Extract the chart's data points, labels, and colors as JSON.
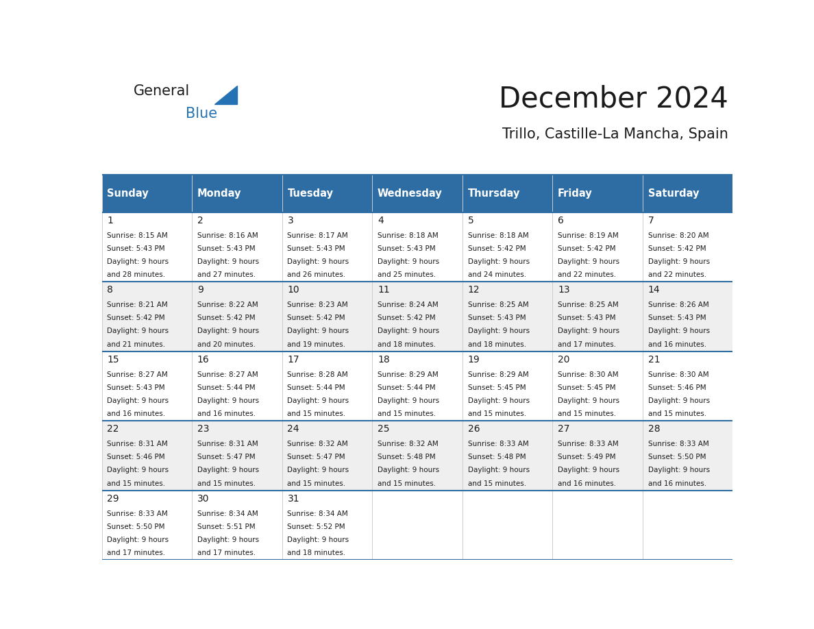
{
  "title": "December 2024",
  "subtitle": "Trillo, Castille-La Mancha, Spain",
  "header_bg_color": "#2E6DA4",
  "header_text_color": "#FFFFFF",
  "cell_bg_even": "#EFEFEF",
  "cell_bg_odd": "#FFFFFF",
  "day_names": [
    "Sunday",
    "Monday",
    "Tuesday",
    "Wednesday",
    "Thursday",
    "Friday",
    "Saturday"
  ],
  "title_color": "#1a1a1a",
  "subtitle_color": "#1a1a1a",
  "days": [
    {
      "day": 1,
      "col": 0,
      "row": 0,
      "sunrise": "8:15 AM",
      "sunset": "5:43 PM",
      "daylight": "9 hours and 28 minutes."
    },
    {
      "day": 2,
      "col": 1,
      "row": 0,
      "sunrise": "8:16 AM",
      "sunset": "5:43 PM",
      "daylight": "9 hours and 27 minutes."
    },
    {
      "day": 3,
      "col": 2,
      "row": 0,
      "sunrise": "8:17 AM",
      "sunset": "5:43 PM",
      "daylight": "9 hours and 26 minutes."
    },
    {
      "day": 4,
      "col": 3,
      "row": 0,
      "sunrise": "8:18 AM",
      "sunset": "5:43 PM",
      "daylight": "9 hours and 25 minutes."
    },
    {
      "day": 5,
      "col": 4,
      "row": 0,
      "sunrise": "8:18 AM",
      "sunset": "5:42 PM",
      "daylight": "9 hours and 24 minutes."
    },
    {
      "day": 6,
      "col": 5,
      "row": 0,
      "sunrise": "8:19 AM",
      "sunset": "5:42 PM",
      "daylight": "9 hours and 22 minutes."
    },
    {
      "day": 7,
      "col": 6,
      "row": 0,
      "sunrise": "8:20 AM",
      "sunset": "5:42 PM",
      "daylight": "9 hours and 22 minutes."
    },
    {
      "day": 8,
      "col": 0,
      "row": 1,
      "sunrise": "8:21 AM",
      "sunset": "5:42 PM",
      "daylight": "9 hours and 21 minutes."
    },
    {
      "day": 9,
      "col": 1,
      "row": 1,
      "sunrise": "8:22 AM",
      "sunset": "5:42 PM",
      "daylight": "9 hours and 20 minutes."
    },
    {
      "day": 10,
      "col": 2,
      "row": 1,
      "sunrise": "8:23 AM",
      "sunset": "5:42 PM",
      "daylight": "9 hours and 19 minutes."
    },
    {
      "day": 11,
      "col": 3,
      "row": 1,
      "sunrise": "8:24 AM",
      "sunset": "5:42 PM",
      "daylight": "9 hours and 18 minutes."
    },
    {
      "day": 12,
      "col": 4,
      "row": 1,
      "sunrise": "8:25 AM",
      "sunset": "5:43 PM",
      "daylight": "9 hours and 18 minutes."
    },
    {
      "day": 13,
      "col": 5,
      "row": 1,
      "sunrise": "8:25 AM",
      "sunset": "5:43 PM",
      "daylight": "9 hours and 17 minutes."
    },
    {
      "day": 14,
      "col": 6,
      "row": 1,
      "sunrise": "8:26 AM",
      "sunset": "5:43 PM",
      "daylight": "9 hours and 16 minutes."
    },
    {
      "day": 15,
      "col": 0,
      "row": 2,
      "sunrise": "8:27 AM",
      "sunset": "5:43 PM",
      "daylight": "9 hours and 16 minutes."
    },
    {
      "day": 16,
      "col": 1,
      "row": 2,
      "sunrise": "8:27 AM",
      "sunset": "5:44 PM",
      "daylight": "9 hours and 16 minutes."
    },
    {
      "day": 17,
      "col": 2,
      "row": 2,
      "sunrise": "8:28 AM",
      "sunset": "5:44 PM",
      "daylight": "9 hours and 15 minutes."
    },
    {
      "day": 18,
      "col": 3,
      "row": 2,
      "sunrise": "8:29 AM",
      "sunset": "5:44 PM",
      "daylight": "9 hours and 15 minutes."
    },
    {
      "day": 19,
      "col": 4,
      "row": 2,
      "sunrise": "8:29 AM",
      "sunset": "5:45 PM",
      "daylight": "9 hours and 15 minutes."
    },
    {
      "day": 20,
      "col": 5,
      "row": 2,
      "sunrise": "8:30 AM",
      "sunset": "5:45 PM",
      "daylight": "9 hours and 15 minutes."
    },
    {
      "day": 21,
      "col": 6,
      "row": 2,
      "sunrise": "8:30 AM",
      "sunset": "5:46 PM",
      "daylight": "9 hours and 15 minutes."
    },
    {
      "day": 22,
      "col": 0,
      "row": 3,
      "sunrise": "8:31 AM",
      "sunset": "5:46 PM",
      "daylight": "9 hours and 15 minutes."
    },
    {
      "day": 23,
      "col": 1,
      "row": 3,
      "sunrise": "8:31 AM",
      "sunset": "5:47 PM",
      "daylight": "9 hours and 15 minutes."
    },
    {
      "day": 24,
      "col": 2,
      "row": 3,
      "sunrise": "8:32 AM",
      "sunset": "5:47 PM",
      "daylight": "9 hours and 15 minutes."
    },
    {
      "day": 25,
      "col": 3,
      "row": 3,
      "sunrise": "8:32 AM",
      "sunset": "5:48 PM",
      "daylight": "9 hours and 15 minutes."
    },
    {
      "day": 26,
      "col": 4,
      "row": 3,
      "sunrise": "8:33 AM",
      "sunset": "5:48 PM",
      "daylight": "9 hours and 15 minutes."
    },
    {
      "day": 27,
      "col": 5,
      "row": 3,
      "sunrise": "8:33 AM",
      "sunset": "5:49 PM",
      "daylight": "9 hours and 16 minutes."
    },
    {
      "day": 28,
      "col": 6,
      "row": 3,
      "sunrise": "8:33 AM",
      "sunset": "5:50 PM",
      "daylight": "9 hours and 16 minutes."
    },
    {
      "day": 29,
      "col": 0,
      "row": 4,
      "sunrise": "8:33 AM",
      "sunset": "5:50 PM",
      "daylight": "9 hours and 17 minutes."
    },
    {
      "day": 30,
      "col": 1,
      "row": 4,
      "sunrise": "8:34 AM",
      "sunset": "5:51 PM",
      "daylight": "9 hours and 17 minutes."
    },
    {
      "day": 31,
      "col": 2,
      "row": 4,
      "sunrise": "8:34 AM",
      "sunset": "5:52 PM",
      "daylight": "9 hours and 18 minutes."
    }
  ],
  "logo_color_general": "#1a1a1a",
  "logo_color_blue": "#2472B3",
  "logo_triangle_color": "#2472B3"
}
